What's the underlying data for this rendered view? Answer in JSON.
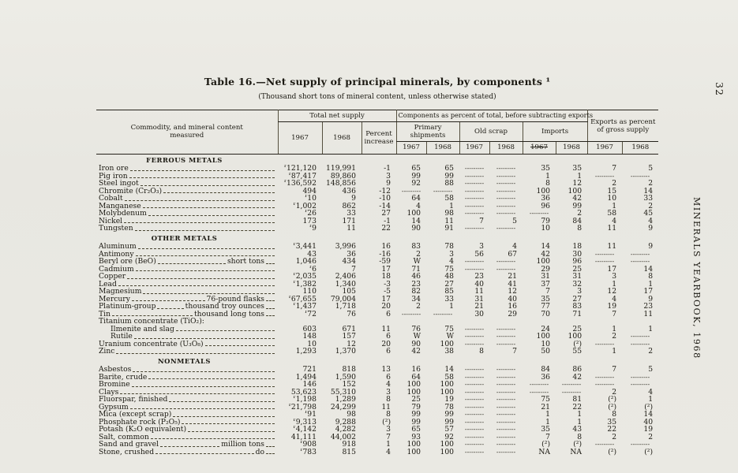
{
  "page": {
    "number": "32",
    "side_title": "MINERALS YEARBOOK, 1968"
  },
  "table": {
    "title": "Table 16.—Net supply of principal minerals, by components ¹",
    "subtitle": "(Thousand short tons of mineral content, unless otherwise stated)",
    "headers": {
      "commodity": "Commodity, and mineral content measured",
      "total_net_supply": "Total net supply",
      "components": "Components as percent of total, before subtracting exports",
      "exports": "Exports as percent of gross supply",
      "primary_shipments": "Primary shipments",
      "old_scrap": "Old scrap",
      "imports": "Imports",
      "y1967": "1967",
      "y1968": "1968",
      "percent_increase": "Percent increase"
    },
    "sections": [
      {
        "heading": "FERROUS METALS",
        "rows": [
          {
            "label": "Iron ore",
            "cells": [
              "ʳ121,120",
              "119,991",
              "-1",
              "65",
              "65",
              "",
              "",
              "35",
              "35",
              "7",
              "5"
            ]
          },
          {
            "label": "Pig iron",
            "cells": [
              "ʳ87,417",
              "89,860",
              "3",
              "99",
              "99",
              "",
              "",
              "1",
              "1",
              "",
              ""
            ]
          },
          {
            "label": "Steel ingot",
            "cells": [
              "ʳ136,592",
              "148,856",
              "9",
              "92",
              "88",
              "",
              "",
              "8",
              "12",
              "2",
              "2"
            ]
          },
          {
            "label": "Chromite (Cr₂O₃)",
            "cells": [
              "494",
              "436",
              "-12",
              "",
              "",
              "",
              "",
              "100",
              "100",
              "15",
              "14"
            ]
          },
          {
            "label": "Cobalt",
            "cells": [
              "ʳ10",
              "9",
              "-10",
              "64",
              "58",
              "",
              "",
              "36",
              "42",
              "10",
              "33"
            ]
          },
          {
            "label": "Manganese",
            "cells": [
              "ʳ1,002",
              "862",
              "-14",
              "4",
              "1",
              "",
              "",
              "96",
              "99",
              "1",
              "2"
            ]
          },
          {
            "label": "Molybdenum",
            "cells": [
              "ʳ26",
              "33",
              "27",
              "100",
              "98",
              "",
              "",
              "",
              "2",
              "58",
              "45"
            ]
          },
          {
            "label": "Nickel",
            "cells": [
              "173",
              "171",
              "-1",
              "14",
              "11",
              "7",
              "5",
              "79",
              "84",
              "4",
              "4"
            ]
          },
          {
            "label": "Tungsten",
            "cells": [
              "ʳ9",
              "11",
              "22",
              "90",
              "91",
              "",
              "",
              "10",
              "8",
              "11",
              "9"
            ]
          }
        ]
      },
      {
        "heading": "OTHER METALS",
        "rows": [
          {
            "label": "Aluminum",
            "cells": [
              "ʳ3,441",
              "3,996",
              "16",
              "83",
              "78",
              "3",
              "4",
              "14",
              "18",
              "11",
              "9"
            ]
          },
          {
            "label": "Antimony",
            "cells": [
              "43",
              "36",
              "-16",
              "2",
              "3",
              "56",
              "67",
              "42",
              "30",
              "",
              ""
            ]
          },
          {
            "label": "Beryl ore (BeO)",
            "unit": "short tons",
            "cells": [
              "1,046",
              "434",
              "-59",
              "W",
              "4",
              "",
              "",
              "100",
              "96",
              "",
              ""
            ]
          },
          {
            "label": "Cadmium",
            "cells": [
              "ʳ6",
              "7",
              "17",
              "71",
              "75",
              "",
              "",
              "29",
              "25",
              "17",
              "14"
            ]
          },
          {
            "label": "Copper",
            "cells": [
              "ʳ2,035",
              "2,406",
              "18",
              "46",
              "48",
              "23",
              "21",
              "31",
              "31",
              "3",
              "8"
            ]
          },
          {
            "label": "Lead",
            "cells": [
              "ʳ1,382",
              "1,340",
              "-3",
              "23",
              "27",
              "40",
              "41",
              "37",
              "32",
              "1",
              "1"
            ]
          },
          {
            "label": "Magnesium",
            "cells": [
              "110",
              "105",
              "-5",
              "82",
              "85",
              "11",
              "12",
              "7",
              "3",
              "12",
              "17"
            ]
          },
          {
            "label": "Mercury",
            "unit": "76-pound flasks",
            "cells": [
              "ʳ67,655",
              "79,004",
              "17",
              "34",
              "33",
              "31",
              "40",
              "35",
              "27",
              "4",
              "9"
            ]
          },
          {
            "label": "Platinum-group",
            "unit": "thousand troy ounces",
            "cells": [
              "ʳ1,437",
              "1,718",
              "20",
              "2",
              "1",
              "21",
              "16",
              "77",
              "83",
              "19",
              "23"
            ]
          },
          {
            "label": "Tin",
            "unit": "thousand long tons",
            "cells": [
              "ʳ72",
              "76",
              "6",
              "",
              "",
              "30",
              "29",
              "70",
              "71",
              "7",
              "11"
            ]
          },
          {
            "label": "Titanium concentrate (TiO₂):",
            "no_leader": true,
            "cells": null
          },
          {
            "label": "Ilmenite and slag",
            "indent": true,
            "cells": [
              "603",
              "671",
              "11",
              "76",
              "75",
              "",
              "",
              "24",
              "25",
              "1",
              "1"
            ]
          },
          {
            "label": "Rutile",
            "indent": true,
            "cells": [
              "148",
              "157",
              "6",
              "W",
              "W",
              "",
              "",
              "100",
              "100",
              "2",
              ""
            ]
          },
          {
            "label": "Uranium concentrate (U₃O₈)",
            "cells": [
              "10",
              "12",
              "20",
              "90",
              "100",
              "",
              "",
              "10",
              "(²)",
              "",
              ""
            ]
          },
          {
            "label": "Zinc",
            "cells": [
              "1,293",
              "1,370",
              "6",
              "42",
              "38",
              "8",
              "7",
              "50",
              "55",
              "1",
              "2"
            ]
          }
        ]
      },
      {
        "heading": "NONMETALS",
        "rows": [
          {
            "label": "Asbestos",
            "cells": [
              "721",
              "818",
              "13",
              "16",
              "14",
              "",
              "",
              "84",
              "86",
              "7",
              "5"
            ]
          },
          {
            "label": "Barite, crude",
            "cells": [
              "1,494",
              "1,590",
              "6",
              "64",
              "58",
              "",
              "",
              "36",
              "42",
              "",
              ""
            ]
          },
          {
            "label": "Bromine",
            "cells": [
              "146",
              "152",
              "4",
              "100",
              "100",
              "",
              "",
              "",
              "",
              "",
              ""
            ]
          },
          {
            "label": "Clays",
            "cells": [
              "53,623",
              "55,310",
              "3",
              "100",
              "100",
              "",
              "",
              "",
              "",
              "2",
              "4"
            ]
          },
          {
            "label": "Fluorspar, finished",
            "cells": [
              "ʳ1,198",
              "1,289",
              "8",
              "25",
              "19",
              "",
              "",
              "75",
              "81",
              "(²)",
              "1"
            ]
          },
          {
            "label": "Gypsum",
            "cells": [
              "ʳ21,798",
              "24,299",
              "11",
              "79",
              "78",
              "",
              "",
              "21",
              "22",
              "(²)",
              "(²)"
            ]
          },
          {
            "label": "Mica (except scrap)",
            "cells": [
              "ʳ91",
              "98",
              "8",
              "99",
              "99",
              "",
              "",
              "1",
              "1",
              "8",
              "14"
            ]
          },
          {
            "label": "Phosphate rock (P₂O₅)",
            "cells": [
              "ʳ9,313",
              "9,288",
              "(²)",
              "99",
              "99",
              "",
              "",
              "1",
              "1",
              "35",
              "40"
            ]
          },
          {
            "label": "Potash (K₂O equivalent)",
            "cells": [
              "ʳ4,142",
              "4,282",
              "3",
              "65",
              "57",
              "",
              "",
              "35",
              "43",
              "22",
              "19"
            ]
          },
          {
            "label": "Salt, common",
            "cells": [
              "41,111",
              "44,002",
              "7",
              "93",
              "92",
              "",
              "",
              "7",
              "8",
              "2",
              "2"
            ]
          },
          {
            "label": "Sand and gravel",
            "unit": "million tons",
            "cells": [
              "ʳ908",
              "918",
              "1",
              "100",
              "100",
              "",
              "",
              "(²)",
              "(²)",
              "",
              ""
            ]
          },
          {
            "label": "Stone, crushed",
            "unit": "do",
            "cells": [
              "ʳ783",
              "815",
              "4",
              "100",
              "100",
              "",
              "",
              "NA",
              "NA",
              "(²)",
              "(²)"
            ]
          }
        ]
      }
    ]
  }
}
